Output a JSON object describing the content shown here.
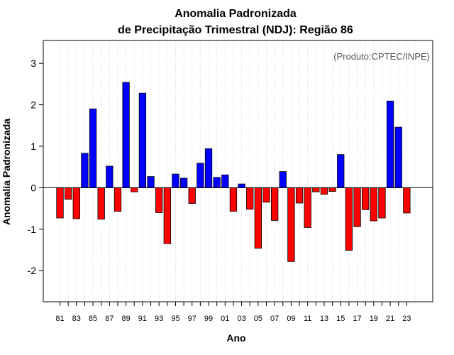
{
  "chart_data": {
    "type": "bar",
    "title_line1": "Anomalia Padronizada",
    "title_line2": "de Precipitação Trimestral (NDJ): Região 86",
    "ylabel": "Anomalia Padronizada",
    "xlabel": "Ano",
    "annotation": "(Produto:CPTEC/INPE)",
    "ylim": [
      -2.75,
      3.55
    ],
    "yticks": [
      -2,
      -1,
      0,
      1,
      2,
      3
    ],
    "ytick_labels": [
      "-2",
      "-1",
      "0",
      "1",
      "2",
      "3"
    ],
    "categories": [
      "81",
      "82",
      "83",
      "84",
      "85",
      "86",
      "87",
      "88",
      "89",
      "90",
      "91",
      "92",
      "93",
      "94",
      "95",
      "96",
      "97",
      "98",
      "99",
      "00",
      "01",
      "02",
      "03",
      "04",
      "05",
      "06",
      "07",
      "08",
      "09",
      "10",
      "11",
      "12",
      "13",
      "14",
      "15",
      "16",
      "17",
      "18",
      "19",
      "20",
      "21",
      "22",
      "23"
    ],
    "xtick_labels": [
      "81",
      "",
      "83",
      "",
      "85",
      "",
      "87",
      "",
      "89",
      "",
      "91",
      "",
      "93",
      "",
      "95",
      "",
      "97",
      "",
      "99",
      "",
      "01",
      "",
      "03",
      "",
      "05",
      "",
      "07",
      "",
      "09",
      "",
      "11",
      "",
      "13",
      "",
      "15",
      "",
      "17",
      "",
      "19",
      "",
      "21",
      "",
      "23"
    ],
    "values": [
      -0.73,
      -0.28,
      -0.75,
      0.83,
      1.9,
      -0.76,
      0.52,
      -0.57,
      2.54,
      -0.1,
      2.28,
      0.27,
      -0.6,
      -1.35,
      0.33,
      0.23,
      -0.38,
      0.59,
      0.94,
      0.25,
      0.31,
      -0.57,
      0.09,
      -0.52,
      -1.46,
      -0.35,
      -0.79,
      0.39,
      -1.78,
      -0.37,
      -0.96,
      -0.1,
      -0.16,
      -0.09,
      0.8,
      -1.51,
      -0.94,
      -0.53,
      -0.8,
      -0.73,
      2.09,
      1.46,
      -0.61
    ],
    "colors": {
      "positive": "#0000ff",
      "negative": "#ff0000",
      "grid": "#cccccc"
    }
  }
}
